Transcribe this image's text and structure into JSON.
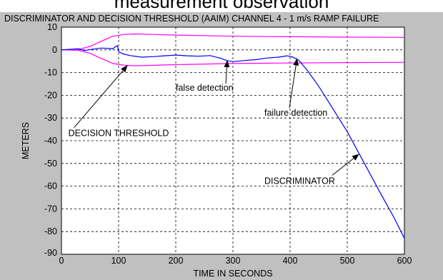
{
  "page": {
    "heading": "measurement observation"
  },
  "chart_data": {
    "type": "line",
    "title": "DISCRIMINATOR AND DECISION THRESHOLD (AAIM) CHANNEL 4 - 1 m/s RAMP FAILURE",
    "xlabel": "TIME IN SECONDS",
    "ylabel": "METERS",
    "xlim": [
      0,
      600
    ],
    "ylim": [
      -90,
      10
    ],
    "xticks": [
      0,
      100,
      200,
      300,
      400,
      500,
      600
    ],
    "yticks": [
      10,
      0,
      -10,
      -20,
      -30,
      -40,
      -50,
      -60,
      -70,
      -80,
      -90
    ],
    "grid": true,
    "grid_style": "dashed",
    "colors": {
      "threshold": "#ff00ff",
      "discriminator": "#0000ff",
      "plot_background": "#ffffff",
      "figure_background": "#c0c0c0"
    },
    "series": [
      {
        "key": "upper",
        "x": [
          0,
          30,
          50,
          70,
          90,
          110,
          130,
          160,
          200,
          300,
          400,
          500,
          600
        ],
        "y": [
          0,
          0.2,
          1.5,
          3.8,
          6,
          6.8,
          7,
          6.8,
          6.5,
          6,
          5.8,
          5.6,
          5.5
        ]
      },
      {
        "key": "lower",
        "x": [
          0,
          30,
          50,
          70,
          90,
          110,
          130,
          160,
          200,
          300,
          400,
          500,
          600
        ],
        "y": [
          0,
          -0.2,
          -1.5,
          -3.8,
          -6,
          -6.8,
          -7,
          -6.8,
          -6.5,
          -6,
          -5.8,
          -5.6,
          -5.5
        ]
      },
      {
        "key": "discriminator",
        "x": [
          0,
          30,
          40,
          55,
          70,
          85,
          90,
          95,
          98,
          100,
          108,
          120,
          140,
          160,
          180,
          200,
          220,
          240,
          260,
          280,
          290,
          300,
          320,
          340,
          360,
          380,
          395,
          405,
          415,
          430,
          450,
          470,
          500,
          530,
          560,
          580,
          600
        ],
        "y": [
          0,
          0.5,
          -0.3,
          0.3,
          0.8,
          0.6,
          0.5,
          1.5,
          1.8,
          -0.8,
          -1.8,
          -2.5,
          -3.2,
          -3,
          -2.6,
          -2.3,
          -2.6,
          -2.8,
          -2.5,
          -3.8,
          -4.8,
          -5.2,
          -4.7,
          -4.3,
          -3.6,
          -3.2,
          -2.6,
          -3.2,
          -4.5,
          -9,
          -16,
          -24,
          -36,
          -50,
          -64,
          -73,
          -83
        ]
      }
    ],
    "annotations": [
      {
        "text": "DECISION THRESHOLD",
        "x": 12,
        "y": -38,
        "arrow_to": [
          115,
          -7
        ]
      },
      {
        "text": "false detection",
        "x": 200,
        "y": -18,
        "arrow_to": [
          290,
          -4.8
        ]
      },
      {
        "text": "failure detection",
        "x": 355,
        "y": -29,
        "arrow_to": [
          412,
          -4
        ]
      },
      {
        "text": "DISCRIMINATOR",
        "x": 355,
        "y": -59,
        "arrow_to": [
          520,
          -46
        ]
      }
    ]
  }
}
